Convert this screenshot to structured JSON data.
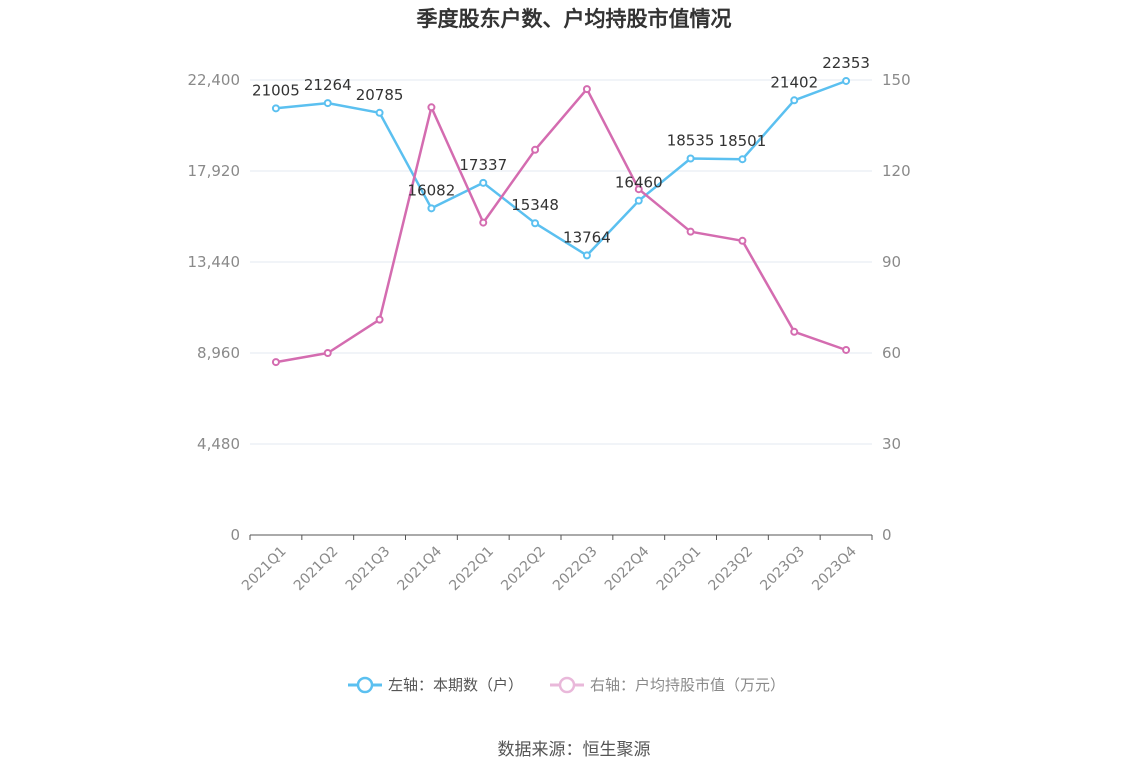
{
  "chart_data": {
    "type": "line",
    "title": "季度股东户数、户均持股市值情况",
    "categories": [
      "2021Q1",
      "2021Q2",
      "2021Q3",
      "2021Q4",
      "2022Q1",
      "2022Q2",
      "2022Q3",
      "2022Q4",
      "2023Q1",
      "2023Q2",
      "2023Q3",
      "2023Q4"
    ],
    "left_axis": {
      "ticks": [
        "0",
        "4,480",
        "8,960",
        "13,440",
        "17,920",
        "22,400"
      ],
      "range": [
        0,
        22400
      ]
    },
    "right_axis": {
      "ticks": [
        "0",
        "30",
        "60",
        "90",
        "120",
        "150"
      ],
      "range": [
        0,
        150
      ]
    },
    "grid": true,
    "series": [
      {
        "name": "左轴：本期数（户）",
        "axis": "left",
        "color": "#5bc0f0",
        "values": [
          21005,
          21264,
          20785,
          16082,
          17337,
          15348,
          13764,
          16460,
          18535,
          18501,
          21402,
          22353
        ],
        "labels": [
          "21005",
          "21264",
          "20785",
          "16082",
          "17337",
          "15348",
          "13764",
          "16460",
          "18535",
          "18501",
          "21402",
          "22353"
        ]
      },
      {
        "name": "右轴：户均持股市值（万元）",
        "axis": "right",
        "color": "#d46cb0",
        "values": [
          57,
          60,
          71,
          141,
          103,
          127,
          147,
          114,
          100,
          97,
          67,
          61
        ]
      }
    ],
    "legend_position": "bottom"
  },
  "source": "数据来源：恒生聚源"
}
